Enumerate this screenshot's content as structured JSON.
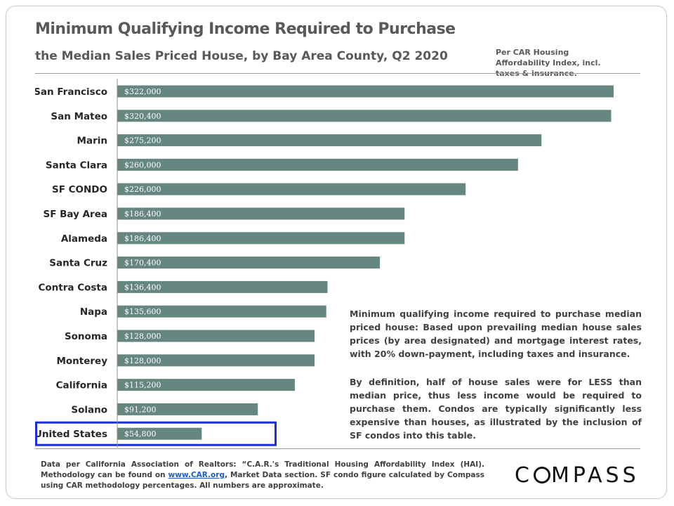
{
  "header": {
    "title": "Minimum Qualifying Income Required to Purchase",
    "subtitle": "the Median Sales Priced House, by Bay Area County, Q2 2020",
    "note": "Per CAR Housing Affordability Index, incl. taxes & insurance."
  },
  "chart_data": {
    "type": "bar",
    "orientation": "horizontal",
    "categories": [
      "San Francisco",
      "San Mateo",
      "Marin",
      "Santa Clara",
      "SF CONDO",
      "SF Bay Area",
      "Alameda",
      "Santa Cruz",
      "Contra Costa",
      "Napa",
      "Sonoma",
      "Monterey",
      "California",
      "Solano",
      "United States"
    ],
    "values": [
      322000,
      320400,
      275200,
      260000,
      226000,
      186400,
      186400,
      170400,
      136400,
      135600,
      128000,
      128000,
      115200,
      91200,
      54800
    ],
    "value_labels": [
      "$322,000",
      "$320,400",
      "$275,200",
      "$260,000",
      "$226,000",
      "$186,400",
      "$186,400",
      "$170,400",
      "$136,400",
      "$135,600",
      "$128,000",
      "$128,000",
      "$115,200",
      "$91,200",
      "$54,800"
    ],
    "bar_color": "#65877f",
    "highlighted_category": "United States",
    "highlight_color": "#1a2fd6"
  },
  "explanation": {
    "paragraph1": "Minimum qualifying income required to purchase median priced house: Based upon prevailing median house sales prices (by area designated) and mortgage interest rates, with 20% down-payment, including taxes and insurance.",
    "paragraph2": "By definition, half of house sales were for LESS than median price, thus less income would be required to purchase them. Condos are typically significantly less expensive than houses, as illustrated by the inclusion of SF condos into this table."
  },
  "footer": {
    "source_before": "Data per California Association of Realtors: “C.A.R.'s Traditional Housing Affordability Index (HAI). Methodology can be found on ",
    "link": "www.CAR.org",
    "source_after": ", Market Data section. SF condo figure calculated by Compass using CAR methodology percentages. All numbers are approximate.",
    "logo_before": "C",
    "logo_after": "MPASS"
  }
}
